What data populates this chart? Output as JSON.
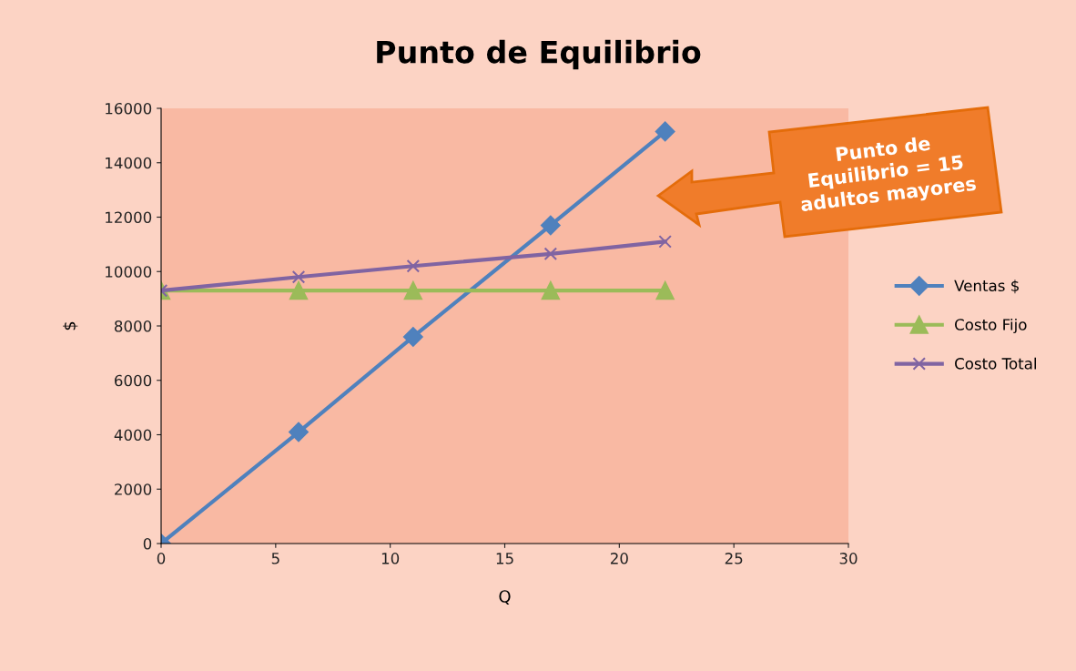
{
  "chart_data": {
    "type": "line",
    "title": "Punto de Equilibrio",
    "xlabel": "Q",
    "ylabel": "$",
    "x": [
      0,
      6,
      11,
      17,
      22
    ],
    "series": [
      {
        "name": "Ventas $",
        "color": "#4f81bd",
        "marker": "diamond",
        "values": [
          0,
          4100,
          7600,
          11700,
          15150
        ]
      },
      {
        "name": "Costo Fijo",
        "color": "#9bbb59",
        "marker": "triangle",
        "values": [
          9300,
          9300,
          9300,
          9300,
          9300
        ]
      },
      {
        "name": "Costo Total",
        "color": "#8064a2",
        "marker": "cross",
        "values": [
          9300,
          9800,
          10200,
          10650,
          11100
        ]
      }
    ],
    "xlim": [
      0,
      30
    ],
    "xticks": [
      0,
      5,
      10,
      15,
      20,
      25,
      30
    ],
    "ylim": [
      0,
      16000
    ],
    "yticks": [
      0,
      2000,
      4000,
      6000,
      8000,
      10000,
      12000,
      14000,
      16000
    ],
    "grid": false,
    "legend": "right",
    "annotations": [
      "Punto de\nEquilibrio = 15\nadultos mayores"
    ]
  }
}
